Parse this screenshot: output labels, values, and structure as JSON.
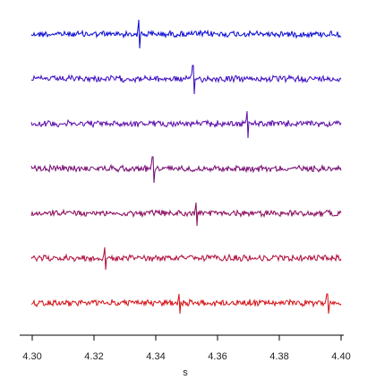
{
  "chart_data": {
    "type": "line",
    "title": "",
    "xlabel": "s",
    "ylabel": "",
    "xlim": [
      4.3,
      4.4
    ],
    "xticks": [
      4.3,
      4.32,
      4.34,
      4.36,
      4.38,
      4.4
    ],
    "xtick_labels": [
      "4.30",
      "4.32",
      "4.34",
      "4.36",
      "4.38",
      "4.40"
    ],
    "grid": false,
    "series": [
      {
        "color": "#0a0ad2",
        "spikes": [
          {
            "x": 4.3345,
            "up": 16,
            "down": 16
          }
        ]
      },
      {
        "color": "#3a0ac0",
        "spikes": [
          {
            "x": 4.352,
            "up": 15,
            "down": 17
          }
        ]
      },
      {
        "color": "#5a0aa8",
        "spikes": [
          {
            "x": 4.3695,
            "up": 14,
            "down": 16
          }
        ]
      },
      {
        "color": "#75086f",
        "spikes": [
          {
            "x": 4.339,
            "up": 13,
            "down": 16
          }
        ]
      },
      {
        "color": "#8a0a5a",
        "spikes": [
          {
            "x": 4.353,
            "up": 12,
            "down": 14
          }
        ]
      },
      {
        "color": "#b00c3a",
        "spikes": [
          {
            "x": 4.3235,
            "up": 12,
            "down": 13
          }
        ]
      },
      {
        "color": "#d40f14",
        "spikes": [
          {
            "x": 4.3475,
            "up": 10,
            "down": 12
          },
          {
            "x": 4.3955,
            "up": 10,
            "down": 12
          }
        ]
      }
    ]
  }
}
